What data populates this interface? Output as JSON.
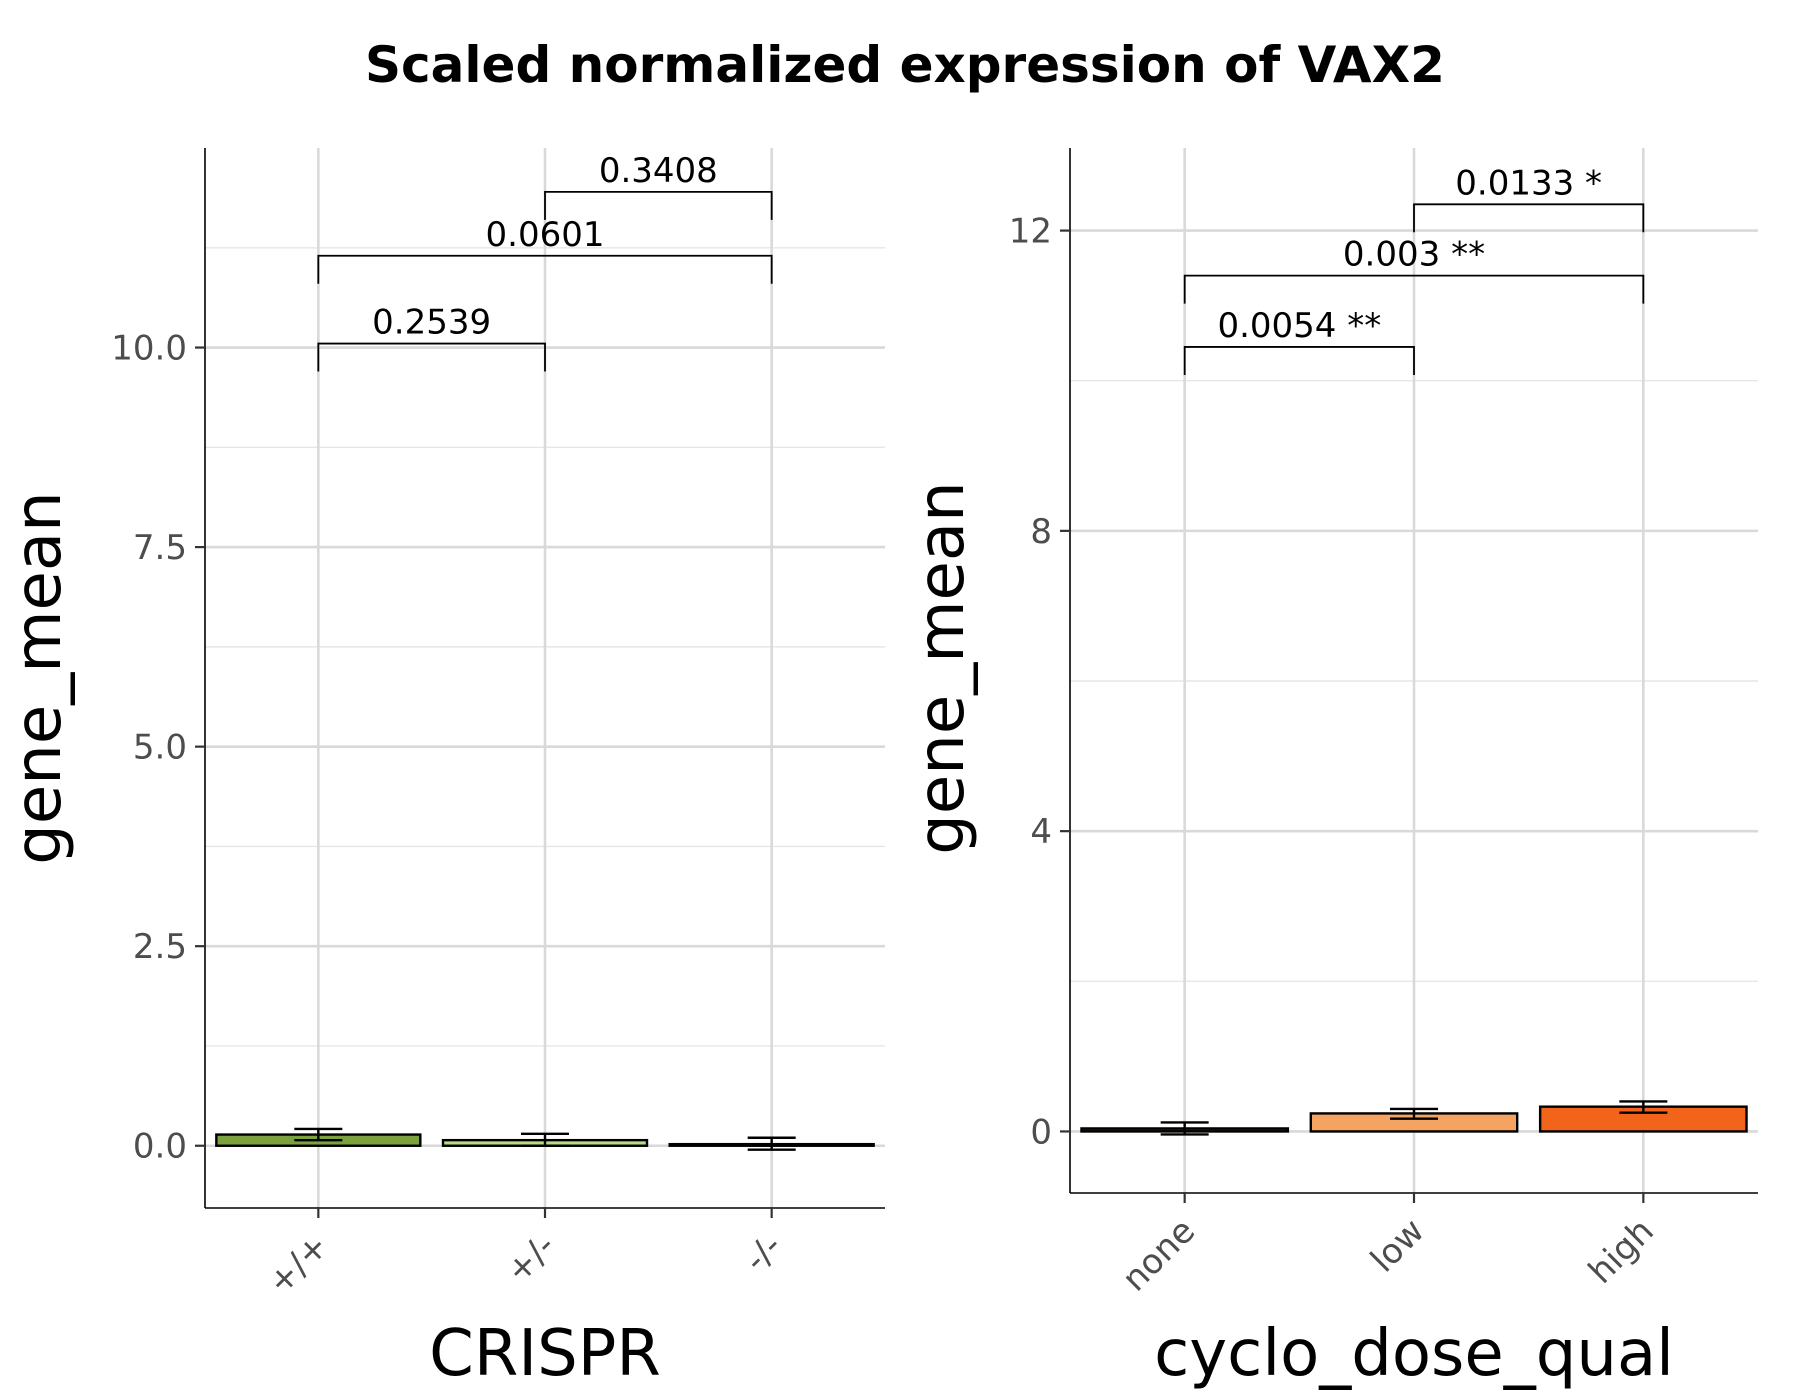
{
  "figure": {
    "title": "Scaled normalized expression of VAX2"
  },
  "chart_data": [
    {
      "type": "bar",
      "title": "",
      "xlabel": "CRISPR",
      "ylabel": "gene_mean",
      "categories": [
        "+/+",
        "+/-",
        "-/-"
      ],
      "values": [
        0.14,
        0.07,
        0.02
      ],
      "error_low": [
        0.07,
        0.0,
        -0.05
      ],
      "error_high": [
        0.21,
        0.15,
        0.1
      ],
      "bar_colors": [
        "#7ba23f",
        "#b5dc84",
        "#2f4f1f"
      ],
      "ylim": [
        -0.78,
        12.5
      ],
      "yticks": [
        0.0,
        2.5,
        5.0,
        7.5,
        10.0
      ],
      "ytick_labels": [
        "0.0",
        "2.5",
        "5.0",
        "7.5",
        "10.0"
      ],
      "grid": true,
      "comparisons": [
        {
          "from": 0,
          "to": 1,
          "y": 10.05,
          "label": "0.2539"
        },
        {
          "from": 0,
          "to": 2,
          "y": 11.15,
          "label": "0.0601"
        },
        {
          "from": 1,
          "to": 2,
          "y": 11.95,
          "label": "0.3408"
        }
      ]
    },
    {
      "type": "bar",
      "title": "",
      "xlabel": "cyclo_dose_qual",
      "ylabel": "gene_mean",
      "categories": [
        "none",
        "low",
        "high"
      ],
      "values": [
        0.04,
        0.24,
        0.33
      ],
      "error_low": [
        -0.04,
        0.17,
        0.25
      ],
      "error_high": [
        0.12,
        0.3,
        0.4
      ],
      "bar_colors": [
        "#4d1f0a",
        "#f4a460",
        "#f26419"
      ],
      "ylim": [
        -0.82,
        13.1
      ],
      "yticks": [
        0,
        4,
        8,
        12
      ],
      "ytick_labels": [
        "0",
        "4",
        "8",
        "12"
      ],
      "grid": true,
      "comparisons": [
        {
          "from": 0,
          "to": 1,
          "y": 10.45,
          "label": "0.0054 **"
        },
        {
          "from": 0,
          "to": 2,
          "y": 11.4,
          "label": "0.003 **"
        },
        {
          "from": 1,
          "to": 2,
          "y": 12.35,
          "label": "0.0133 *"
        }
      ]
    }
  ]
}
